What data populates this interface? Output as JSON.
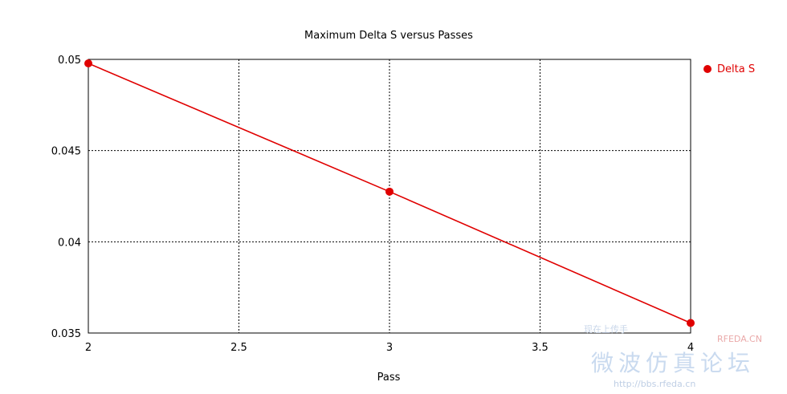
{
  "chart_data": {
    "type": "line",
    "title": "Maximum Delta S versus Passes",
    "xlabel": "Pass",
    "ylabel": "",
    "xlim": [
      2,
      4
    ],
    "ylim": [
      0.035,
      0.05
    ],
    "x_ticks": [
      "2",
      "2.5",
      "3",
      "3.5",
      "4"
    ],
    "y_ticks": [
      "0.035",
      "0.04",
      "0.045",
      "0.05"
    ],
    "grid": true,
    "legend_position": "right",
    "series": [
      {
        "name": "Delta S",
        "color": "#e00000",
        "x": [
          2,
          3,
          4
        ],
        "y": [
          0.04978,
          0.04275,
          0.03555
        ]
      }
    ]
  },
  "watermark": {
    "top_line": "现在上传手",
    "brand": "RFEDA.CN",
    "chinese": "微波仿真论坛",
    "url": "http://bbs.rfeda.cn"
  }
}
